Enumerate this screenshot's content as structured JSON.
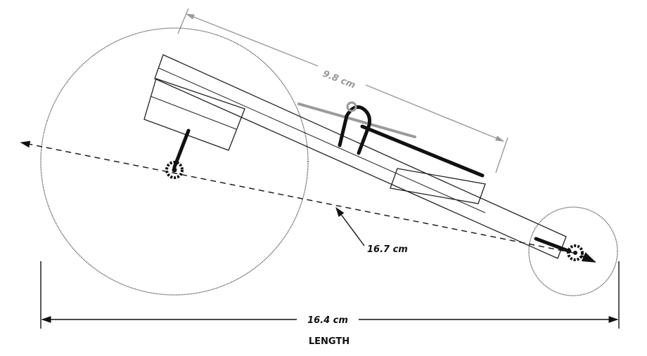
{
  "dimensions": {
    "top_span": "9.8 cm",
    "diagonal": "16.7 cm",
    "overall": "16.4 cm"
  },
  "caption": "LENGTH",
  "colors": {
    "line": "#111111",
    "dim_gray": "#9a9a9a",
    "background": "#ffffff"
  }
}
